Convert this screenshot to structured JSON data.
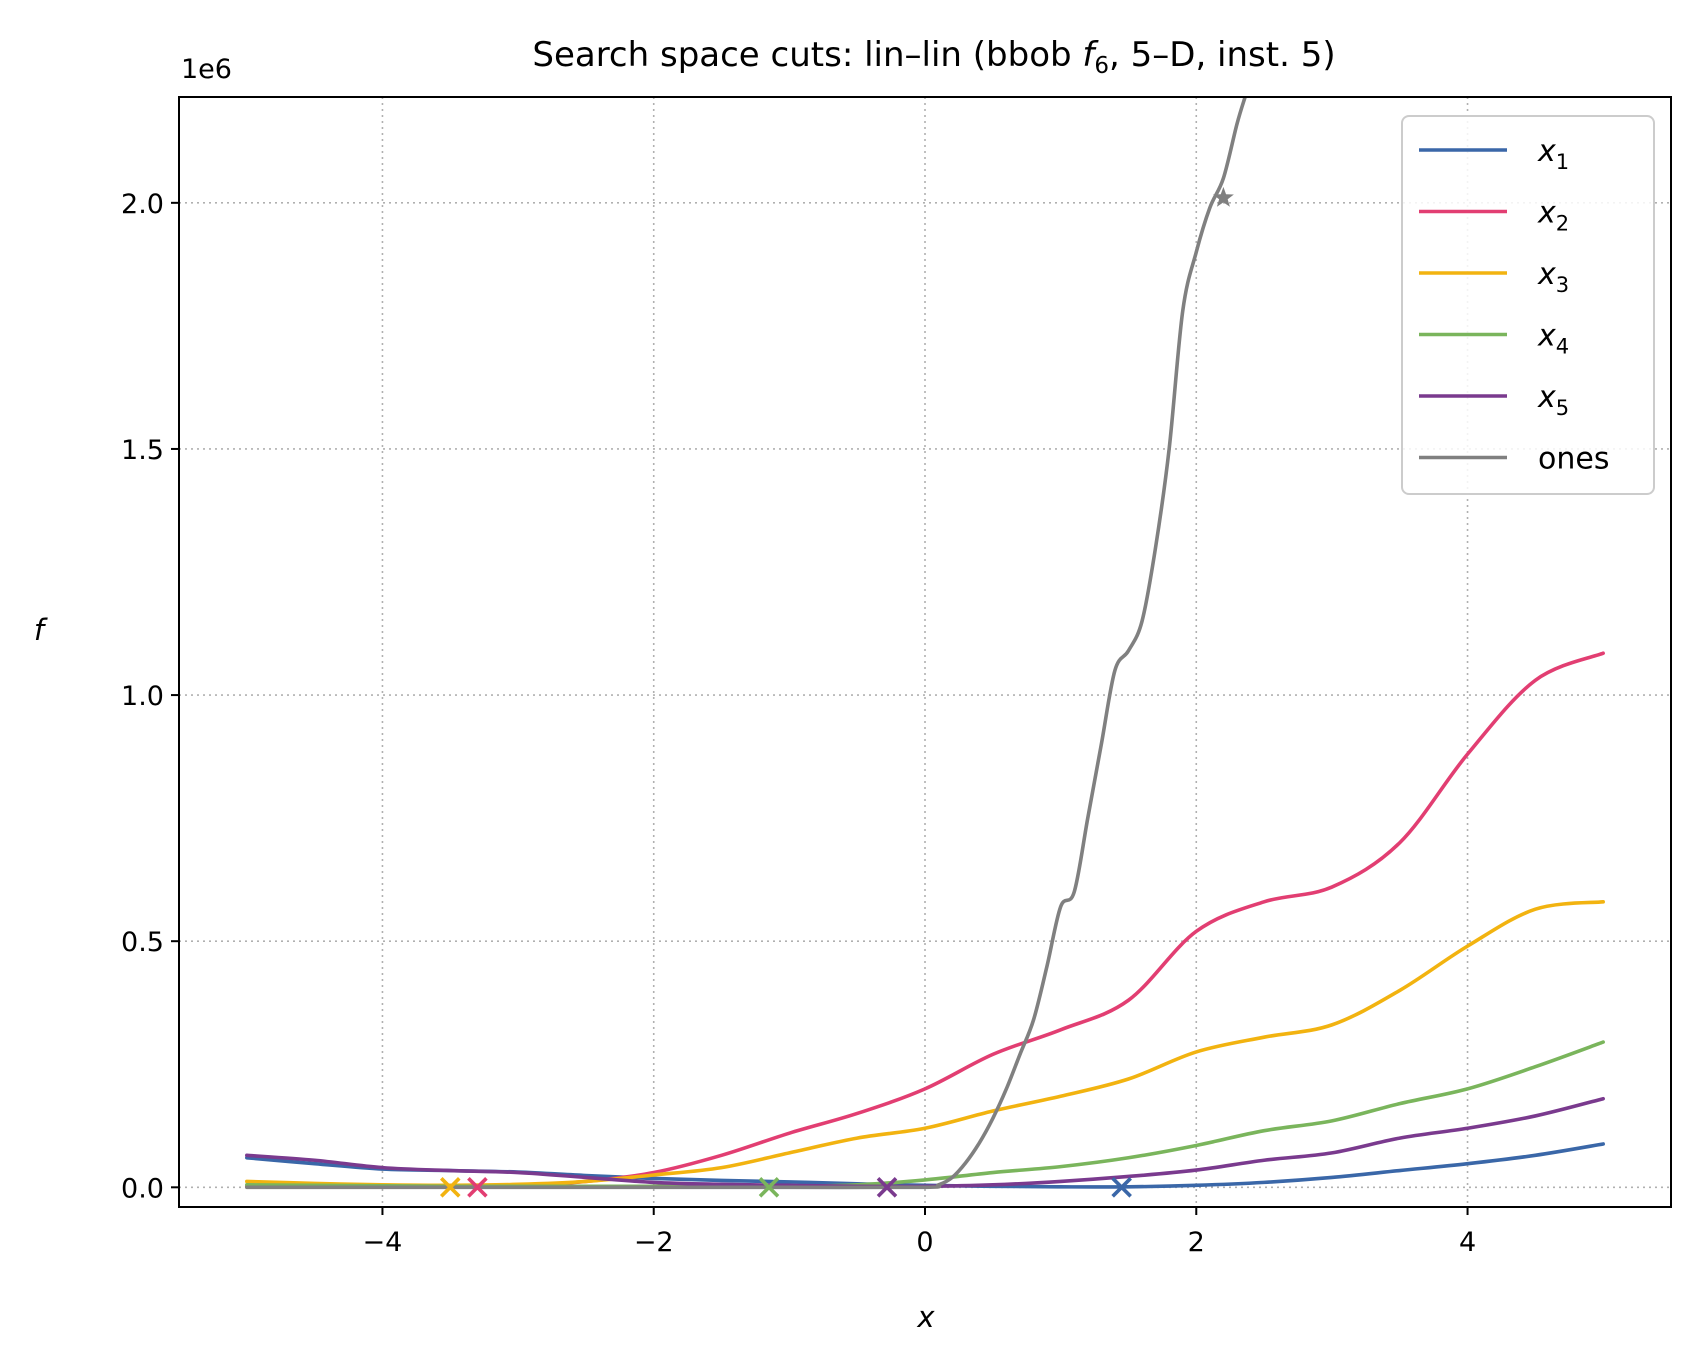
{
  "chart_data": {
    "type": "line",
    "title": "Search space cuts: lin–lin (bbob f6, 5–D, inst. 5)",
    "title_parts": {
      "before": "Search space cuts: lin–lin (bbob ",
      "f": "f",
      "sub": "6",
      "after": ", 5–D, inst. 5)"
    },
    "xlabel": "x",
    "ylabel": "f",
    "y_offset_label": "1e6",
    "xlim": [
      -5.5,
      5.5
    ],
    "ylim": [
      -0.04,
      2.215
    ],
    "x_ticks": [
      -4,
      -2,
      0,
      2,
      4
    ],
    "x_tick_labels": [
      "−4",
      "−2",
      "0",
      "2",
      "4"
    ],
    "y_ticks": [
      0.0,
      0.5,
      1.0,
      1.5,
      2.0
    ],
    "y_tick_labels": [
      "0.0",
      "0.5",
      "1.0",
      "1.5",
      "2.0"
    ],
    "grid": true,
    "legend_position": "top-right",
    "series": [
      {
        "name": "x1",
        "legend_base": "x",
        "legend_sub": "1",
        "color": "#3a67a8",
        "x": [
          -5,
          -4.5,
          -4,
          -3.5,
          -3,
          -2.5,
          -2,
          -1.5,
          -1,
          -0.5,
          0,
          0.5,
          1,
          1.5,
          2,
          2.5,
          3,
          3.5,
          4,
          4.5,
          5
        ],
        "y": [
          0.06,
          0.048,
          0.037,
          0.034,
          0.031,
          0.024,
          0.018,
          0.014,
          0.011,
          0.007,
          0.004,
          0.002,
          0.001,
          0.001,
          0.004,
          0.01,
          0.02,
          0.034,
          0.048,
          0.065,
          0.088
        ],
        "marker_x": 1.45,
        "marker_y": 0.0,
        "marker": "x"
      },
      {
        "name": "x2",
        "legend_base": "x",
        "legend_sub": "2",
        "color": "#e23e72",
        "x": [
          -5,
          -4.5,
          -4,
          -3.5,
          -3,
          -2.5,
          -2,
          -1.5,
          -1,
          -0.5,
          0,
          0.5,
          1,
          1.5,
          2,
          2.5,
          3,
          3.5,
          4,
          4.5,
          5
        ],
        "y": [
          0.002,
          0.002,
          0.002,
          0.003,
          0.004,
          0.012,
          0.03,
          0.065,
          0.11,
          0.15,
          0.2,
          0.27,
          0.32,
          0.38,
          0.52,
          0.58,
          0.61,
          0.7,
          0.88,
          1.03,
          1.085
        ],
        "marker_x": -3.3,
        "marker_y": 0.0,
        "marker": "x"
      },
      {
        "name": "x3",
        "legend_base": "x",
        "legend_sub": "3",
        "color": "#f2b310",
        "x": [
          -5,
          -4.5,
          -4,
          -3.5,
          -3,
          -2.5,
          -2,
          -1.5,
          -1,
          -0.5,
          0,
          0.5,
          1,
          1.5,
          2,
          2.5,
          3,
          3.5,
          4,
          4.5,
          5
        ],
        "y": [
          0.012,
          0.008,
          0.005,
          0.004,
          0.006,
          0.012,
          0.025,
          0.04,
          0.07,
          0.1,
          0.12,
          0.155,
          0.185,
          0.22,
          0.275,
          0.305,
          0.33,
          0.4,
          0.49,
          0.565,
          0.58
        ],
        "marker_x": -3.5,
        "marker_y": 0.0,
        "marker": "x"
      },
      {
        "name": "x4",
        "legend_base": "x",
        "legend_sub": "4",
        "color": "#7ab55c",
        "x": [
          -5,
          -4.5,
          -4,
          -3.5,
          -3,
          -2.5,
          -2,
          -1.5,
          -1,
          -0.5,
          0,
          0.5,
          1,
          1.5,
          2,
          2.5,
          3,
          3.5,
          4,
          4.5,
          5
        ],
        "y": [
          0.005,
          0.004,
          0.003,
          0.002,
          0.002,
          0.002,
          0.002,
          0.002,
          0.002,
          0.005,
          0.015,
          0.03,
          0.042,
          0.06,
          0.085,
          0.115,
          0.135,
          0.17,
          0.2,
          0.245,
          0.295
        ],
        "marker_x": -1.15,
        "marker_y": 0.0,
        "marker": "x"
      },
      {
        "name": "x5",
        "legend_base": "x",
        "legend_sub": "5",
        "color": "#7a3a8e",
        "x": [
          -5,
          -4.5,
          -4,
          -3.5,
          -3,
          -2.5,
          -2,
          -1.5,
          -1,
          -0.5,
          0,
          0.5,
          1,
          1.5,
          2,
          2.5,
          3,
          3.5,
          4,
          4.5,
          5
        ],
        "y": [
          0.065,
          0.055,
          0.04,
          0.034,
          0.03,
          0.02,
          0.01,
          0.006,
          0.004,
          0.002,
          0.002,
          0.005,
          0.012,
          0.022,
          0.035,
          0.055,
          0.07,
          0.1,
          0.12,
          0.145,
          0.18
        ],
        "marker_x": -0.28,
        "marker_y": 0.0,
        "marker": "x"
      },
      {
        "name": "ones",
        "legend_base": "ones",
        "legend_sub": "",
        "color": "#808080",
        "x": [
          -5,
          -4,
          -3,
          -2,
          -1,
          0,
          0.1,
          0.2,
          0.3,
          0.4,
          0.5,
          0.6,
          0.7,
          0.8,
          0.9,
          1.0,
          1.1,
          1.2,
          1.3,
          1.4,
          1.5,
          1.6,
          1.7,
          1.8,
          1.9,
          2.0,
          2.1,
          2.2,
          2.3,
          2.36
        ],
        "y": [
          0.0,
          0.0,
          0.0,
          0.0,
          0.0,
          0.0,
          0.005,
          0.02,
          0.05,
          0.09,
          0.14,
          0.2,
          0.27,
          0.34,
          0.45,
          0.57,
          0.6,
          0.75,
          0.9,
          1.05,
          1.09,
          1.15,
          1.3,
          1.5,
          1.78,
          1.9,
          1.99,
          2.05,
          2.16,
          2.215
        ],
        "marker_x": 2.2,
        "marker_y": 2.01,
        "marker": "star"
      }
    ]
  }
}
